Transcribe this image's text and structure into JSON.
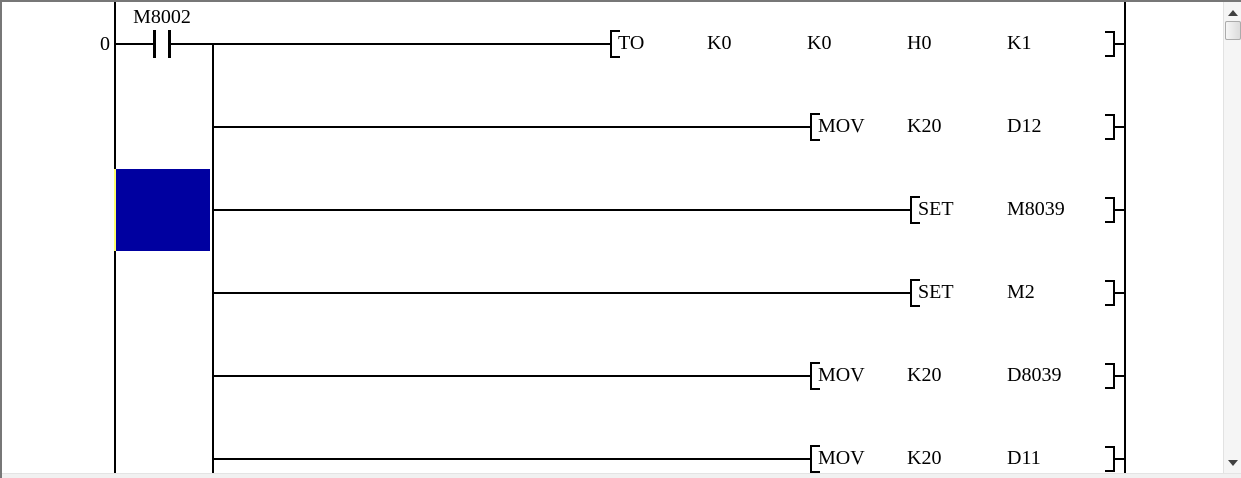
{
  "window": {
    "background": "#ffffff",
    "frame_color": "#777777"
  },
  "ladder": {
    "row_number": "0",
    "contact_label": "M8002",
    "line_color": "#000000",
    "text_color": "#000000",
    "cursor": {
      "fill": "#0000A0",
      "inverted_rail_color": "#ffff6e",
      "selected_row_index": 2
    },
    "rungs": [
      {
        "instruction": "TO",
        "operands": [
          "K0",
          "K0",
          "H0",
          "K1"
        ]
      },
      {
        "instruction": "MOV",
        "operands": [
          "K20",
          "D12"
        ]
      },
      {
        "instruction": "SET",
        "operands": [
          "M8039"
        ]
      },
      {
        "instruction": "SET",
        "operands": [
          "M2"
        ]
      },
      {
        "instruction": "MOV",
        "operands": [
          "K20",
          "D8039"
        ]
      },
      {
        "instruction": "MOV",
        "operands": [
          "K20",
          "D11"
        ]
      }
    ]
  },
  "scrollbar": {
    "up_icon": "triangle-up",
    "down_icon": "triangle-down"
  }
}
